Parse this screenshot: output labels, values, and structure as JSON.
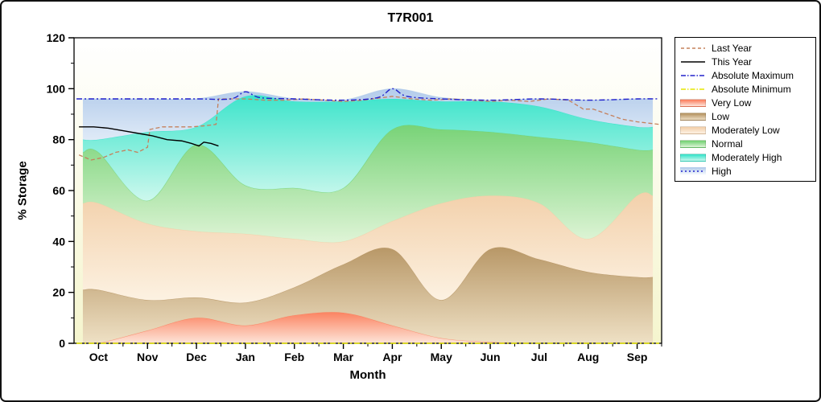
{
  "chart_data": {
    "type": "area",
    "title": "T7R001",
    "xlabel": "Month",
    "ylabel": "% Storage",
    "ylim": [
      0,
      120
    ],
    "y_ticks": [
      0,
      20,
      40,
      60,
      80,
      100,
      120
    ],
    "categories": [
      "Oct",
      "Nov",
      "Dec",
      "Jan",
      "Feb",
      "Mar",
      "Apr",
      "May",
      "Jun",
      "Jul",
      "Aug",
      "Sep"
    ],
    "grid": "off",
    "legend_position": "right-outside",
    "colors": {
      "plot_bg_top": "#ffffff",
      "plot_bg_bottom": "#f5f5ce",
      "axis": "#000000"
    },
    "band_x": [
      -0.32,
      0,
      1,
      2,
      3,
      4,
      5,
      6,
      7,
      8,
      9,
      10,
      11,
      11.32
    ],
    "bands": [
      {
        "name": "Very Low",
        "top": "#fb7a58",
        "bottom": "#fee4da",
        "values": [
          0,
          0,
          5,
          10,
          7,
          11,
          12,
          7,
          2,
          0.5,
          0,
          0,
          0,
          0
        ]
      },
      {
        "name": "Low",
        "top": "#b3905e",
        "bottom": "#eedfc4",
        "values": [
          21,
          21,
          17,
          18,
          16,
          22,
          31,
          37,
          17,
          37,
          33,
          28,
          26,
          26
        ]
      },
      {
        "name": "Moderately Low",
        "top": "#f2cda6",
        "bottom": "#fdf2e4",
        "values": [
          55,
          55,
          47,
          44,
          43,
          41,
          40,
          48,
          55,
          58,
          55,
          41,
          58,
          58
        ]
      },
      {
        "name": "Normal",
        "top": "#6ed06e",
        "bottom": "#ddf4d6",
        "values": [
          75,
          75,
          56,
          78,
          62,
          61,
          61,
          84,
          84,
          83,
          81,
          79,
          76,
          76
        ]
      },
      {
        "name": "Moderately High",
        "top": "#2fe2c8",
        "bottom": "#c9f8ee",
        "values": [
          80,
          80,
          83,
          85,
          97,
          95,
          95,
          96,
          95,
          95,
          93,
          88,
          85,
          85
        ]
      },
      {
        "name": "High",
        "top": "#aec8ea",
        "bottom": "#dde9f8",
        "values": [
          96,
          96,
          96,
          96,
          98.8,
          96,
          95.5,
          100,
          96.5,
          95.5,
          96,
          95.5,
          96,
          96
        ]
      }
    ],
    "lines": [
      {
        "name": "Absolute Minimum",
        "color": "#e6e600",
        "width": 1.6,
        "dash": "7 3 2 3",
        "smooth": false,
        "x": [
          -0.45,
          11.45
        ],
        "values": [
          0,
          0
        ]
      },
      {
        "name": "Last Year",
        "color": "#c5805c",
        "width": 1.3,
        "dash": "5 3",
        "smooth": false,
        "x": [
          -0.4,
          -0.15,
          0.1,
          0.35,
          0.6,
          0.8,
          1.0,
          1.05,
          1.3,
          1.6,
          1.9,
          2.2,
          2.4,
          2.45,
          2.7,
          3.0,
          3.4,
          3.8,
          4.2,
          4.6,
          5.0,
          5.4,
          5.8,
          6.0,
          6.4,
          6.8,
          7.2,
          7.6,
          8.0,
          8.4,
          8.8,
          9.2,
          9.6,
          9.9,
          10.1,
          10.4,
          10.7,
          11.0,
          11.45
        ],
        "values": [
          74,
          72,
          73,
          75,
          76,
          75,
          77,
          84,
          85,
          85,
          85,
          85.5,
          86,
          96,
          96,
          96,
          95.5,
          95.5,
          96,
          95.5,
          95,
          95.5,
          96.5,
          97,
          96,
          95.5,
          96,
          95.5,
          95,
          95.5,
          95,
          96,
          95.5,
          92,
          92,
          90,
          88,
          87,
          86
        ]
      },
      {
        "name": "This Year",
        "color": "#000000",
        "width": 1.4,
        "dash": "",
        "smooth": false,
        "x": [
          -0.4,
          -0.1,
          0.2,
          0.5,
          0.8,
          1.1,
          1.4,
          1.7,
          1.9,
          2.05,
          2.15,
          2.3,
          2.45
        ],
        "values": [
          85,
          85,
          84.5,
          83.5,
          82.5,
          81.5,
          80,
          79.5,
          78.5,
          77.5,
          79,
          78.5,
          77.5
        ]
      },
      {
        "name": "Absolute Maximum",
        "color": "#2222cc",
        "width": 1.4,
        "dash": "7 3 2 3",
        "smooth": true,
        "x": [
          -0.45,
          0,
          1,
          2,
          2.7,
          3,
          3.3,
          4,
          5,
          5.7,
          6,
          6.3,
          7,
          8,
          9,
          10,
          11,
          11.45
        ],
        "values": [
          96,
          96,
          96,
          96,
          96,
          98.8,
          96.5,
          96,
          95.5,
          96.5,
          100,
          97,
          96,
          95.5,
          96,
          95.5,
          96,
          96
        ]
      }
    ],
    "legend": [
      {
        "label": "Last Year",
        "type": "line",
        "color": "#c5805c",
        "dash": "4 3"
      },
      {
        "label": "This Year",
        "type": "line",
        "color": "#000000",
        "dash": ""
      },
      {
        "label": "Absolute Maximum",
        "type": "line",
        "color": "#2222cc",
        "dash": "6 2 1.5 2"
      },
      {
        "label": "Absolute Minimum",
        "type": "line",
        "color": "#e6e600",
        "dash": "6 2 1.5 2"
      },
      {
        "label": "Very Low",
        "type": "patch",
        "color": "#fb7a58",
        "color2": "#fee4da"
      },
      {
        "label": "Low",
        "type": "patch",
        "color": "#b3905e",
        "color2": "#eedfc4"
      },
      {
        "label": "Moderately Low",
        "type": "patch",
        "color": "#f2cda6",
        "color2": "#fdf2e4"
      },
      {
        "label": "Normal",
        "type": "patch",
        "color": "#6ed06e",
        "color2": "#ddf4d6"
      },
      {
        "label": "Moderately High",
        "type": "patch",
        "color": "#2fe2c8",
        "color2": "#c9f8ee"
      },
      {
        "label": "High",
        "type": "line",
        "color": "#2222cc",
        "dash": "2 3",
        "bg": "#aec8ea"
      }
    ]
  }
}
